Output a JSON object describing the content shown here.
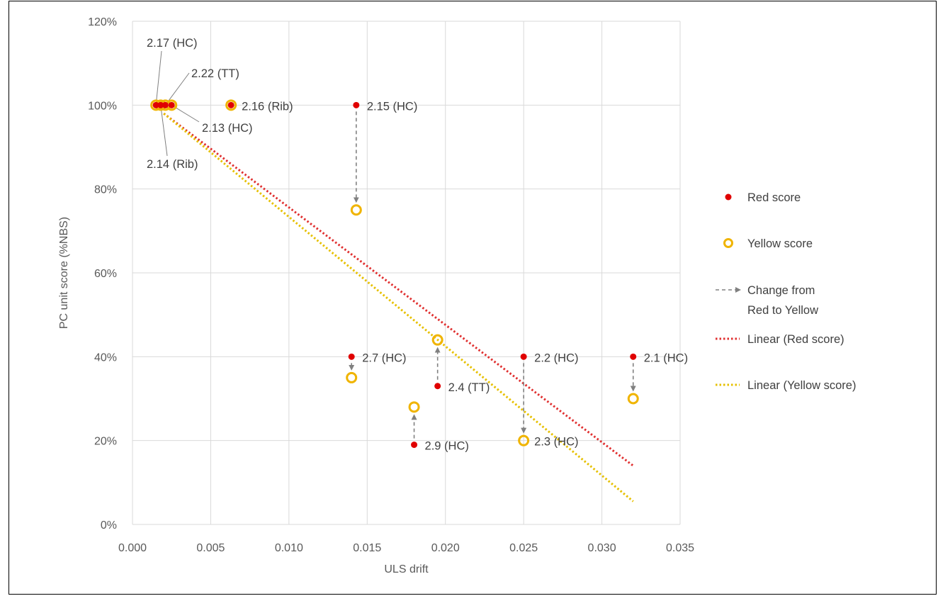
{
  "chart_data": {
    "type": "scatter",
    "title": "",
    "xlabel": "ULS drift",
    "ylabel": "PC unit score (%NBS)",
    "xlim": [
      0,
      0.035
    ],
    "ylim": [
      0,
      1.2
    ],
    "x_ticks": [
      0,
      0.005,
      0.01,
      0.015,
      0.02,
      0.025,
      0.03,
      0.035
    ],
    "x_tick_labels": [
      "0.000",
      "0.005",
      "0.010",
      "0.015",
      "0.020",
      "0.025",
      "0.030",
      "0.035"
    ],
    "y_ticks": [
      0,
      0.2,
      0.4,
      0.6,
      0.8,
      1.0,
      1.2
    ],
    "y_tick_labels": [
      "0%",
      "20%",
      "40%",
      "60%",
      "80%",
      "100%",
      "120%"
    ],
    "grid": true,
    "legend_position": "right",
    "colors": {
      "red": "#e00000",
      "yellow": "#f0b400",
      "red_trend": "#e03030",
      "yellow_trend": "#e6c000",
      "arrow": "#808080",
      "grid": "#d9d9d9"
    },
    "series": [
      {
        "name": "Red score",
        "marker": "filled-circle",
        "x": [
          0.0015,
          0.0018,
          0.0021,
          0.0025,
          0.0063,
          0.0143,
          0.014,
          0.0195,
          0.018,
          0.025,
          0.032
        ],
        "y": [
          1.0,
          1.0,
          1.0,
          1.0,
          1.0,
          1.0,
          0.4,
          0.33,
          0.19,
          0.4,
          0.4
        ]
      },
      {
        "name": "Yellow score",
        "marker": "open-circle",
        "x": [
          0.0015,
          0.0018,
          0.0021,
          0.0025,
          0.0063,
          0.0143,
          0.014,
          0.0195,
          0.018,
          0.025,
          0.032
        ],
        "y": [
          1.0,
          1.0,
          1.0,
          1.0,
          1.0,
          0.75,
          0.35,
          0.44,
          0.28,
          0.2,
          0.3
        ]
      },
      {
        "name": "Linear (Red score)",
        "type": "trendline",
        "x": [
          0.002,
          0.032
        ],
        "y": [
          0.98,
          0.14
        ]
      },
      {
        "name": "Linear (Yellow score)",
        "type": "trendline",
        "x": [
          0.002,
          0.032
        ],
        "y": [
          0.98,
          0.055
        ]
      }
    ],
    "arrows": [
      {
        "x": 0.0143,
        "from": 1.0,
        "to": 0.75
      },
      {
        "x": 0.014,
        "from": 0.4,
        "to": 0.35
      },
      {
        "x": 0.0195,
        "from": 0.33,
        "to": 0.44
      },
      {
        "x": 0.018,
        "from": 0.19,
        "to": 0.28
      },
      {
        "x": 0.025,
        "from": 0.4,
        "to": 0.2
      },
      {
        "x": 0.032,
        "from": 0.4,
        "to": 0.3
      }
    ],
    "legend": [
      {
        "label": "Red score",
        "kind": "red-dot"
      },
      {
        "label": "Yellow score",
        "kind": "yellow-circle"
      },
      {
        "label": "Change from",
        "label2": "Red to Yellow",
        "kind": "arrow"
      },
      {
        "label": "Linear (Red score)",
        "kind": "red-dotted"
      },
      {
        "label": "Linear (Yellow score)",
        "kind": "yellow-dotted"
      }
    ],
    "annotations": [
      {
        "text": "2.17 (HC)",
        "x": 0.0015,
        "y": 1.0,
        "leader": true,
        "label_x": 0.0022,
        "label_y": 1.148
      },
      {
        "text": "2.22 (TT)",
        "x": 0.0021,
        "y": 1.0,
        "leader": true,
        "label_x": 0.0046,
        "label_y": 1.1
      },
      {
        "text": "2.13 (HC)",
        "x": 0.0025,
        "y": 1.0,
        "leader": true,
        "label_x": 0.0037,
        "label_y": 0.94
      },
      {
        "text": "2.14 (Rib)",
        "x": 0.0018,
        "y": 1.0,
        "leader": true,
        "label_x": 0.0025,
        "label_y": 0.85
      },
      {
        "text": "2.16 (Rib)",
        "x": 0.0063,
        "y": 1.0,
        "leader": false
      },
      {
        "text": "2.15 (HC)",
        "x": 0.0143,
        "y": 1.0,
        "leader": false
      },
      {
        "text": "2.7 (HC)",
        "x": 0.014,
        "y": 0.4,
        "leader": false
      },
      {
        "text": "2.4 (TT)",
        "x": 0.0195,
        "y": 0.33,
        "leader": false
      },
      {
        "text": "2.9 (HC)",
        "x": 0.018,
        "y": 0.19,
        "leader": false
      },
      {
        "text": "2.2 (HC)",
        "x": 0.025,
        "y": 0.4,
        "leader": false
      },
      {
        "text": "2.3 (HC)",
        "x": 0.025,
        "y": 0.2,
        "leader": false
      },
      {
        "text": "2.1 (HC)",
        "x": 0.032,
        "y": 0.4,
        "leader": false
      }
    ]
  }
}
